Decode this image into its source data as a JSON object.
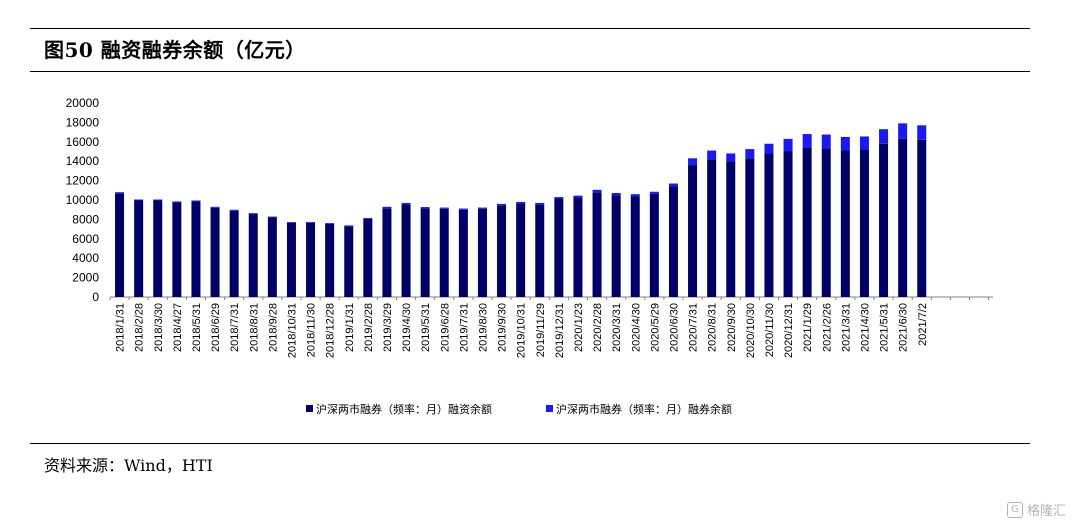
{
  "figure": {
    "title": "图50 融资融券余额（亿元）",
    "source": "资料来源：Wind，HTI"
  },
  "watermark": {
    "icon": "gelonghui-logo-icon",
    "text": "格隆汇"
  },
  "colors": {
    "financing": "#000066",
    "securities_lending": "#1a1aee",
    "axis": "#808080"
  },
  "chart_data": {
    "type": "bar",
    "stacked": true,
    "title": "",
    "xlabel": "",
    "ylabel": "",
    "ylim": [
      0,
      20000
    ],
    "yticks": [
      0,
      2000,
      4000,
      6000,
      8000,
      10000,
      12000,
      14000,
      16000,
      18000,
      20000
    ],
    "grid": false,
    "legend_position": "bottom",
    "categories": [
      "2018/1/31",
      "2018/2/28",
      "2018/3/30",
      "2018/4/27",
      "2018/5/31",
      "2018/6/29",
      "2018/7/31",
      "2018/8/31",
      "2018/9/28",
      "2018/10/31",
      "2018/11/30",
      "2018/12/28",
      "2019/1/31",
      "2019/2/28",
      "2019/3/29",
      "2019/4/30",
      "2019/5/31",
      "2019/6/28",
      "2019/7/31",
      "2019/8/30",
      "2019/9/30",
      "2019/10/31",
      "2019/11/29",
      "2019/12/31",
      "2020/1/23",
      "2020/2/28",
      "2020/3/31",
      "2020/4/30",
      "2020/5/29",
      "2020/6/30",
      "2020/7/31",
      "2020/8/31",
      "2020/9/30",
      "2020/10/30",
      "2020/11/30",
      "2020/12/31",
      "2021/1/29",
      "2021/2/26",
      "2021/3/31",
      "2021/4/30",
      "2021/5/31",
      "2021/6/30",
      "2021/7/2"
    ],
    "series": [
      {
        "name": "沪深两市融券（频率：月）融资余额",
        "values": [
          10700,
          9950,
          9950,
          9750,
          9850,
          9200,
          8900,
          8550,
          8200,
          7650,
          7650,
          7550,
          7300,
          8050,
          9150,
          9550,
          9150,
          9100,
          9000,
          9100,
          9450,
          9650,
          9550,
          10150,
          10250,
          10800,
          10500,
          10400,
          10650,
          11400,
          13600,
          14200,
          14000,
          14300,
          14800,
          15000,
          15400,
          15300,
          15100,
          15200,
          15800,
          16300,
          16200
        ]
      },
      {
        "name": "沪深两市融券（频率：月）融券余额",
        "values": [
          100,
          100,
          100,
          100,
          100,
          100,
          90,
          90,
          90,
          80,
          80,
          80,
          80,
          100,
          150,
          150,
          120,
          120,
          120,
          120,
          150,
          150,
          150,
          150,
          200,
          250,
          220,
          200,
          200,
          300,
          700,
          900,
          800,
          950,
          1000,
          1300,
          1400,
          1450,
          1400,
          1350,
          1500,
          1600,
          1500
        ]
      }
    ]
  }
}
